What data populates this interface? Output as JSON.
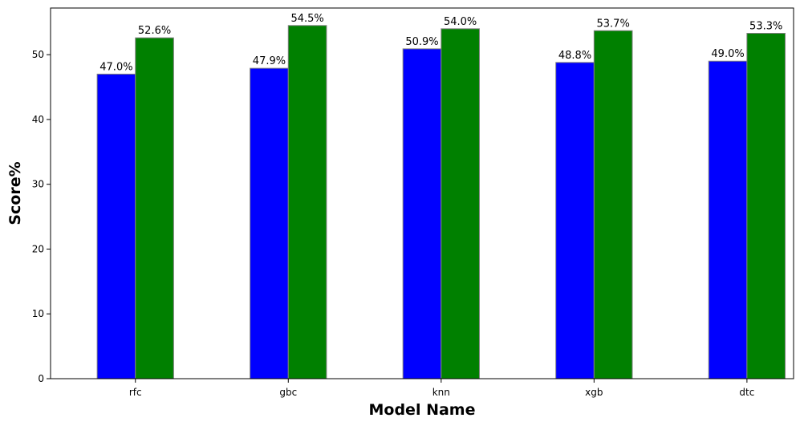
{
  "chart_data": {
    "type": "bar",
    "title": "",
    "xlabel": "Model Name",
    "ylabel": "Score%",
    "categories": [
      "rfc",
      "gbc",
      "knn",
      "xgb",
      "dtc"
    ],
    "series": [
      {
        "color": "#0000ff",
        "values": [
          47.0,
          47.9,
          50.9,
          48.8,
          49.0
        ],
        "labels": [
          "47.0%",
          "47.9%",
          "50.9%",
          "48.8%",
          "49.0%"
        ]
      },
      {
        "color": "#008000",
        "values": [
          52.6,
          54.5,
          54.0,
          53.7,
          53.3
        ],
        "labels": [
          "52.6%",
          "54.5%",
          "54.0%",
          "53.7%",
          "53.3%"
        ]
      }
    ],
    "ylim": [
      0,
      57.2
    ],
    "yticks": [
      0,
      10,
      20,
      30,
      40,
      50
    ],
    "ytick_labels": [
      "0",
      "10",
      "20",
      "30",
      "40",
      "50"
    ],
    "grid": false,
    "legend": "none",
    "bar_edge_color": "#808080"
  }
}
